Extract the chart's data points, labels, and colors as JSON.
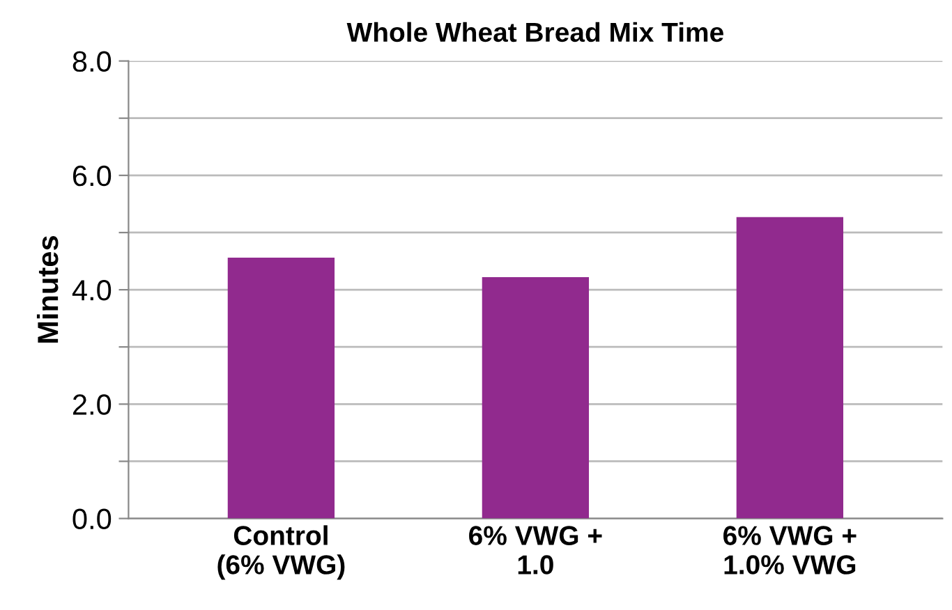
{
  "chart_data": {
    "type": "bar",
    "title": "Whole Wheat Bread Mix Time",
    "ylabel": "Minutes",
    "categories": [
      "Control\n(6% VWG)",
      "6% VWG +\n1.0",
      "6% VWG +\n1.0% VWG"
    ],
    "values": [
      4.56,
      4.22,
      5.27
    ],
    "color": "#912a8e",
    "ylim": [
      0,
      8
    ],
    "yticks": [
      {
        "value": 0,
        "label": "0.0"
      },
      {
        "value": 1,
        "label": null
      },
      {
        "value": 2,
        "label": "2.0"
      },
      {
        "value": 3,
        "label": null
      },
      {
        "value": 4,
        "label": "4.0"
      },
      {
        "value": 5,
        "label": null
      },
      {
        "value": 6,
        "label": "6.0"
      },
      {
        "value": 7,
        "label": null
      },
      {
        "value": 8,
        "label": "8.0"
      }
    ],
    "grid": "y"
  }
}
